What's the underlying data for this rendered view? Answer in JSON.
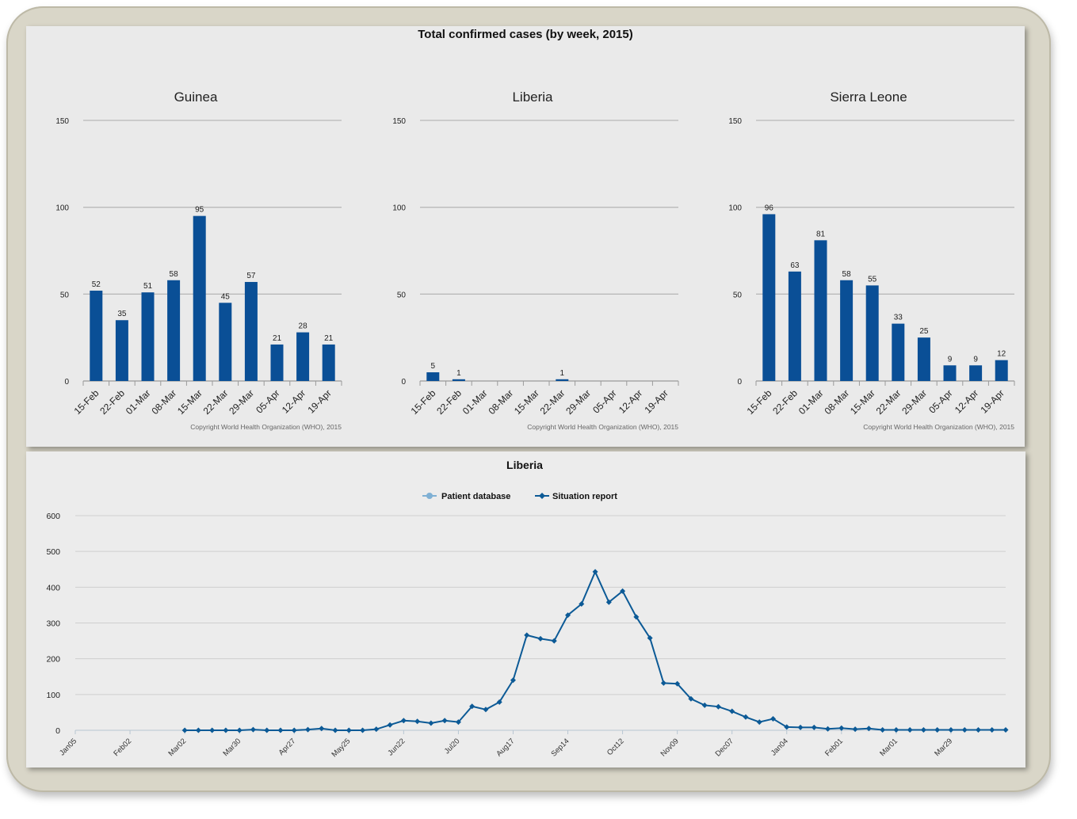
{
  "title": "Total confirmed cases (by week, 2015)",
  "copyright": "Copyright World Health Organization (WHO), 2015",
  "colors": {
    "bar": "#0a4f96",
    "line": "#0c5a96",
    "patient": "#7fb0d4"
  },
  "chart_data": [
    {
      "type": "bar",
      "title": "Guinea",
      "categories": [
        "15-Feb",
        "22-Feb",
        "01-Mar",
        "08-Mar",
        "15-Mar",
        "22-Mar",
        "29-Mar",
        "05-Apr",
        "12-Apr",
        "19-Apr"
      ],
      "values": [
        52,
        35,
        51,
        58,
        95,
        45,
        57,
        21,
        28,
        21
      ],
      "yticks": [
        0,
        50,
        100,
        150
      ],
      "ylim": [
        0,
        150
      ],
      "grid": true
    },
    {
      "type": "bar",
      "title": "Liberia",
      "categories": [
        "15-Feb",
        "22-Feb",
        "01-Mar",
        "08-Mar",
        "15-Mar",
        "22-Mar",
        "29-Mar",
        "05-Apr",
        "12-Apr",
        "19-Apr"
      ],
      "values": [
        5,
        1,
        0,
        0,
        0,
        1,
        0,
        0,
        0,
        0
      ],
      "labels": [
        "5",
        "1",
        "",
        "",
        "",
        "1",
        "",
        "",
        "",
        ""
      ],
      "yticks": [
        0,
        50,
        100,
        150
      ],
      "ylim": [
        0,
        150
      ],
      "grid": true
    },
    {
      "type": "bar",
      "title": "Sierra Leone",
      "categories": [
        "15-Feb",
        "22-Feb",
        "01-Mar",
        "08-Mar",
        "15-Mar",
        "22-Mar",
        "29-Mar",
        "05-Apr",
        "12-Apr",
        "19-Apr"
      ],
      "values": [
        96,
        63,
        81,
        58,
        55,
        33,
        25,
        9,
        9,
        12
      ],
      "yticks": [
        0,
        50,
        100,
        150
      ],
      "ylim": [
        0,
        150
      ],
      "grid": true
    },
    {
      "type": "line",
      "title": "Liberia",
      "legend": [
        "Patient database",
        "Situation report"
      ],
      "x_tick_labels": [
        "Jan05",
        "Feb02",
        "Mar02",
        "Mar30",
        "Apr27",
        "May25",
        "Jun22",
        "Jul20",
        "Aug17",
        "Sep14",
        "Oct12",
        "Nov09",
        "Dec07",
        "Jan04",
        "Feb01",
        "Mar01",
        "Mar29"
      ],
      "x_tick_weeks": [
        0,
        4,
        8,
        12,
        16,
        20,
        24,
        28,
        32,
        36,
        40,
        44,
        48,
        52,
        56,
        60,
        64
      ],
      "yticks": [
        0,
        100,
        200,
        300,
        400,
        500,
        600
      ],
      "ylim": [
        0,
        600
      ],
      "grid": true,
      "series": [
        {
          "name": "Situation report",
          "start_week": 8,
          "values": [
            0,
            0,
            0,
            0,
            0,
            2,
            0,
            0,
            0,
            2,
            5,
            0,
            0,
            0,
            3,
            15,
            27,
            25,
            20,
            27,
            23,
            67,
            58,
            79,
            140,
            266,
            256,
            250,
            322,
            353,
            443,
            358,
            389,
            317,
            258,
            132,
            130,
            88,
            70,
            66,
            53,
            37,
            23,
            32,
            9,
            8,
            8,
            4,
            6,
            3,
            5,
            1,
            1,
            1,
            1,
            1,
            1,
            1,
            1,
            1,
            1
          ]
        }
      ]
    }
  ]
}
